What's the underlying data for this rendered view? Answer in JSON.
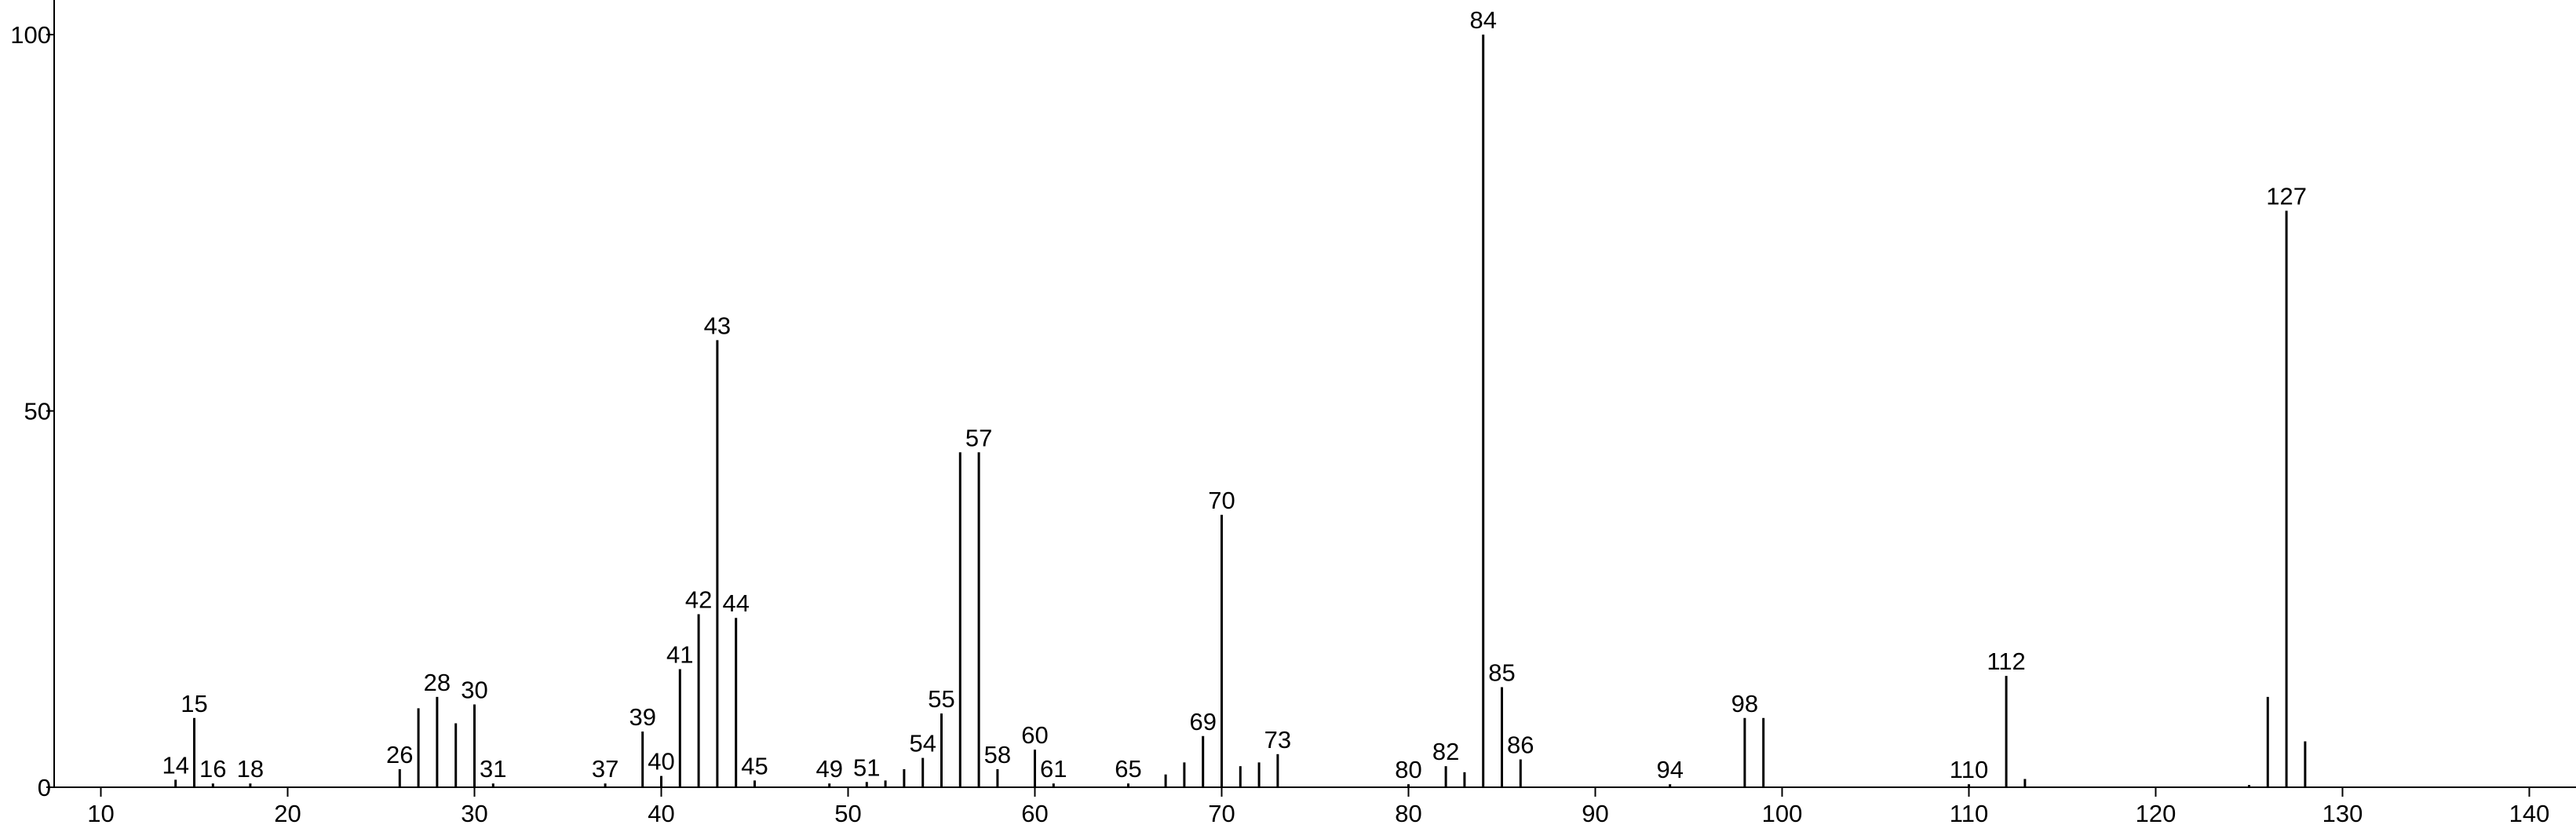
{
  "chart_data": {
    "type": "stem",
    "color": "#000000",
    "x": [
      14,
      15,
      16,
      18,
      26,
      27,
      28,
      29,
      30,
      31,
      37,
      39,
      40,
      41,
      42,
      43,
      44,
      45,
      49,
      51,
      52,
      53,
      54,
      55,
      56,
      57,
      58,
      60,
      61,
      65,
      67,
      68,
      69,
      70,
      71,
      72,
      73,
      80,
      82,
      83,
      84,
      85,
      86,
      94,
      98,
      99,
      110,
      112,
      113,
      125,
      126,
      127,
      128
    ],
    "values": [
      1,
      9.2,
      0.5,
      0.5,
      2.4,
      10.5,
      12,
      8.5,
      11,
      0.5,
      0.5,
      7.4,
      1.5,
      15.7,
      23,
      59.4,
      22.5,
      0.9,
      0.5,
      0.7,
      0.9,
      2.4,
      3.9,
      9.8,
      44.5,
      44.5,
      2.4,
      5,
      0.5,
      0.5,
      1.7,
      3.3,
      6.8,
      36.2,
      2.8,
      3.3,
      4.4,
      0.4,
      2.8,
      2,
      100,
      13.3,
      3.7,
      0.4,
      9.2,
      9.2,
      0.4,
      14.8,
      1.1,
      0.3,
      12,
      76.6,
      6.1
    ],
    "labeled": [
      true,
      true,
      true,
      true,
      true,
      false,
      true,
      false,
      true,
      true,
      true,
      true,
      true,
      true,
      true,
      true,
      true,
      true,
      true,
      true,
      false,
      false,
      true,
      true,
      false,
      true,
      true,
      true,
      true,
      true,
      false,
      false,
      true,
      true,
      false,
      false,
      true,
      true,
      true,
      false,
      true,
      true,
      true,
      true,
      true,
      false,
      true,
      true,
      false,
      false,
      false,
      true,
      false
    ],
    "xlim": [
      7.5,
      142.5
    ],
    "xticks": [
      10,
      20,
      30,
      40,
      50,
      60,
      70,
      80,
      90,
      100,
      110,
      120,
      130,
      140
    ],
    "ylim": [
      0,
      104.6
    ],
    "yticks": [
      0,
      50,
      100
    ]
  }
}
